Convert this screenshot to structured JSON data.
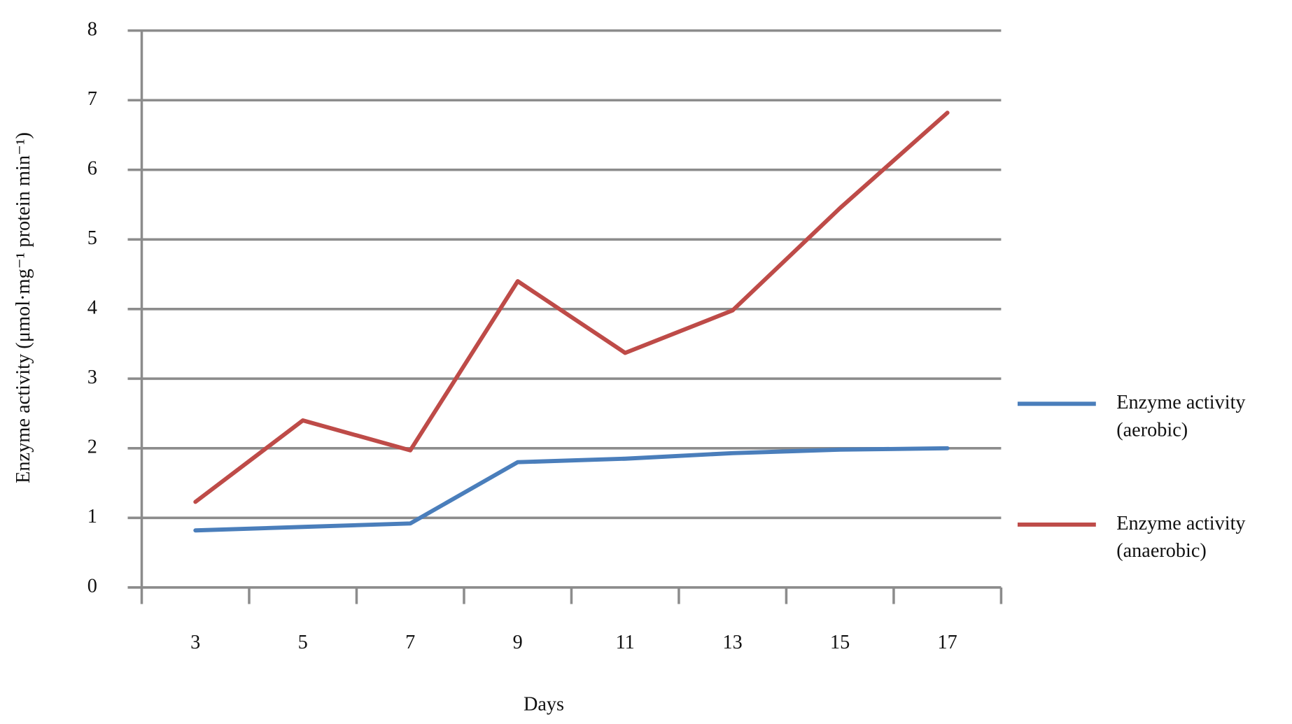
{
  "chart_data": {
    "type": "line",
    "x_label": "Days",
    "y_label": "Enzyme activity (μmol·mg⁻¹ protein min⁻¹)",
    "categories": [
      "3",
      "5",
      "7",
      "9",
      "11",
      "13",
      "15",
      "17"
    ],
    "series": [
      {
        "name": "Enzyme activity (aerobic)",
        "color": "#4a7ebb",
        "values": [
          0.82,
          0.87,
          0.92,
          1.8,
          1.85,
          1.93,
          1.98,
          2.0
        ]
      },
      {
        "name": "Enzyme activity (anaerobic)",
        "color": "#be4b48",
        "values": [
          1.23,
          2.4,
          1.97,
          4.4,
          3.37,
          3.98,
          5.45,
          6.82
        ]
      }
    ],
    "ylim": [
      0,
      8
    ],
    "yticks": [
      0,
      1,
      2,
      3,
      4,
      5,
      6,
      7,
      8
    ],
    "grid": true,
    "legend": "right"
  }
}
